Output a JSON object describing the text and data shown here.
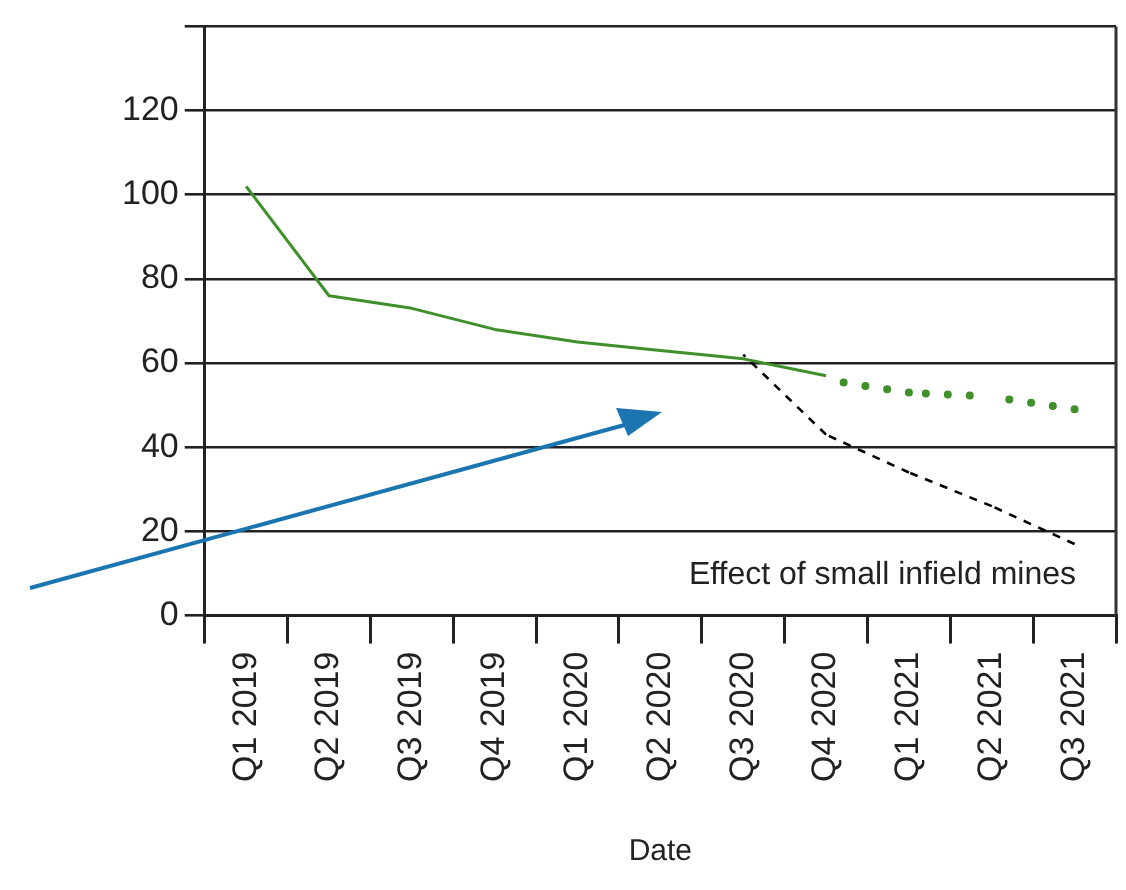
{
  "chart_data": {
    "type": "line",
    "xlabel": "Date",
    "categories": [
      "Q1 2019",
      "Q2 2019",
      "Q3 2019",
      "Q4 2019",
      "Q1 2020",
      "Q2 2020",
      "Q3 2020",
      "Q4 2020",
      "Q1 2021",
      "Q2 2021",
      "Q3 2021"
    ],
    "series": [
      {
        "color": "#3f8f2a",
        "line_style": "solid",
        "values": [
          102,
          76,
          73,
          68,
          65,
          63,
          61,
          57,
          null,
          null,
          null
        ]
      },
      {
        "color": "#3f8f2a",
        "line_style": "dotted",
        "values": [
          null,
          null,
          null,
          null,
          null,
          null,
          null,
          56,
          53,
          52,
          49
        ]
      },
      {
        "color": "#000000",
        "line_style": "dashed",
        "values": [
          null,
          null,
          null,
          null,
          null,
          null,
          62,
          43,
          34,
          26,
          17
        ]
      }
    ],
    "ylim": [
      0,
      140
    ],
    "yticks": [
      0,
      20,
      40,
      60,
      80,
      100,
      120,
      {
        "value": 140,
        "label": null
      }
    ],
    "grid": "y",
    "legend": false,
    "marker": "none",
    "annotations": [
      "Effect of small infield mines"
    ]
  }
}
